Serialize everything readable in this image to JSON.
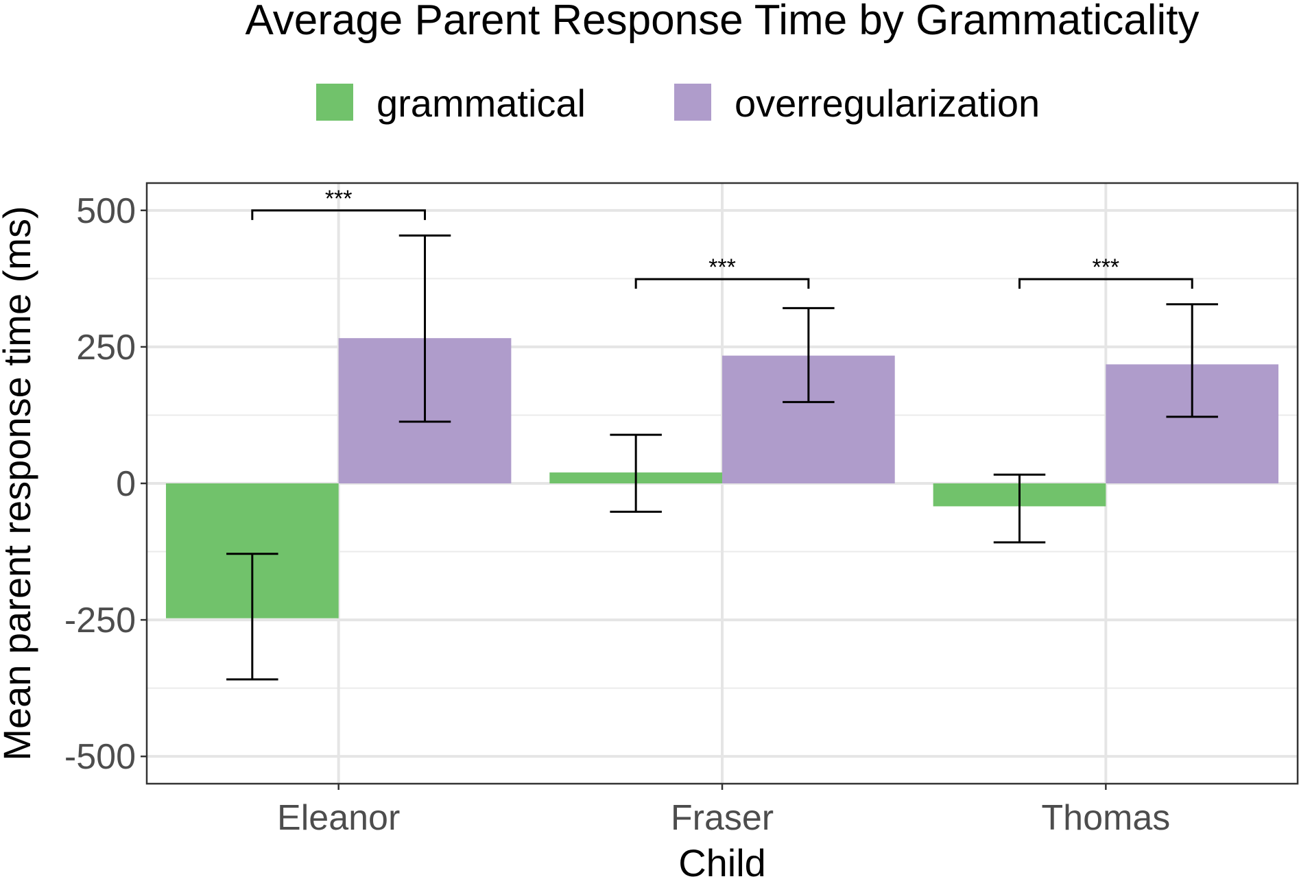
{
  "chart_data": {
    "type": "bar",
    "title": "Average Parent Response Time by Grammaticality",
    "xlabel": "Child",
    "ylabel": "Mean parent response time (ms)",
    "categories": [
      "Eleanor",
      "Fraser",
      "Thomas"
    ],
    "ylim": [
      -550,
      550
    ],
    "yticks": [
      -500,
      -250,
      0,
      250,
      500
    ],
    "ytick_labels": [
      "-500",
      "-250",
      "0",
      "250",
      "500"
    ],
    "grid": true,
    "legend_position": "top",
    "series": [
      {
        "name": "grammatical",
        "color": "#71c26b",
        "values": [
          -247,
          20,
          -42
        ],
        "error_low": [
          -359,
          -52,
          -108
        ],
        "error_high": [
          -129,
          89,
          16
        ]
      },
      {
        "name": "overregularization",
        "color": "#af9ccb",
        "values": [
          266,
          234,
          218
        ],
        "error_low": [
          113,
          149,
          122
        ],
        "error_high": [
          454,
          321,
          328
        ]
      }
    ],
    "significance": [
      {
        "category": "Eleanor",
        "label": "***",
        "y": 500
      },
      {
        "category": "Fraser",
        "label": "***",
        "y": 374
      },
      {
        "category": "Thomas",
        "label": "***",
        "y": 374
      }
    ]
  }
}
